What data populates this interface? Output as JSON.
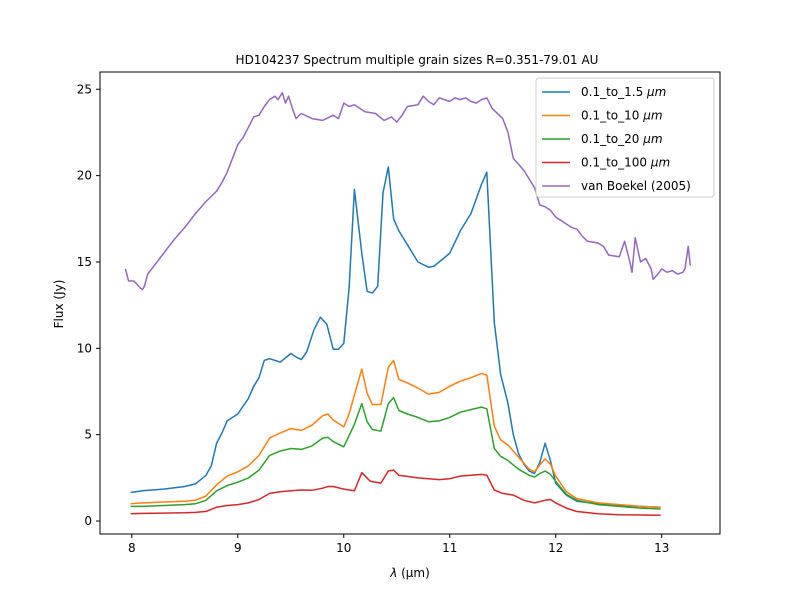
{
  "chart_data": {
    "type": "line",
    "title": "HD104237 Spectrum multiple grain sizes R=0.351-79.01 AU",
    "xlabel_symbol": "λ",
    "xlabel_units": " (μm)",
    "ylabel": "Flux (Jy)",
    "xlim": [
      7.7,
      13.55
    ],
    "ylim": [
      -0.75,
      26.0
    ],
    "xticks": [
      8,
      9,
      10,
      11,
      12,
      13
    ],
    "yticks": [
      0,
      5,
      10,
      15,
      20,
      25
    ],
    "grid": false,
    "legend_position": "top-right",
    "series": [
      {
        "name_prefix": "0.1_to_1.5 ",
        "name_unit": "μm",
        "color": "#1f77b4",
        "x": [
          7.99,
          8.1,
          8.3,
          8.5,
          8.6,
          8.7,
          8.75,
          8.8,
          8.85,
          8.9,
          9.0,
          9.1,
          9.15,
          9.2,
          9.25,
          9.3,
          9.35,
          9.4,
          9.5,
          9.55,
          9.6,
          9.65,
          9.72,
          9.78,
          9.84,
          9.9,
          9.95,
          10.0,
          10.05,
          10.1,
          10.17,
          10.22,
          10.27,
          10.32,
          10.37,
          10.42,
          10.47,
          10.52,
          10.6,
          10.7,
          10.8,
          10.85,
          10.9,
          11.0,
          11.1,
          11.2,
          11.3,
          11.35,
          11.42,
          11.48,
          11.55,
          11.6,
          11.65,
          11.7,
          11.75,
          11.8,
          11.85,
          11.9,
          11.95,
          12.0,
          12.1,
          12.2,
          12.4,
          12.6,
          12.8,
          12.99
        ],
        "y": [
          1.65,
          1.75,
          1.85,
          2.0,
          2.15,
          2.65,
          3.2,
          4.5,
          5.1,
          5.8,
          6.2,
          7.1,
          7.8,
          8.3,
          9.3,
          9.4,
          9.3,
          9.2,
          9.7,
          9.5,
          9.35,
          9.8,
          11.1,
          11.8,
          11.4,
          9.95,
          9.95,
          10.3,
          13.5,
          19.2,
          15.5,
          13.3,
          13.2,
          13.6,
          19.0,
          20.5,
          17.5,
          16.8,
          16.0,
          15.0,
          14.7,
          14.75,
          15.0,
          15.5,
          16.8,
          17.8,
          19.5,
          20.2,
          11.5,
          8.5,
          6.8,
          5.0,
          3.9,
          3.3,
          2.9,
          2.75,
          3.4,
          4.5,
          3.5,
          2.2,
          1.5,
          1.15,
          1.0,
          0.9,
          0.85,
          0.8
        ]
      },
      {
        "name_prefix": "0.1_to_10 ",
        "name_unit": "μm",
        "color": "#ff7f0e",
        "x": [
          7.99,
          8.1,
          8.3,
          8.5,
          8.6,
          8.7,
          8.8,
          8.9,
          9.0,
          9.1,
          9.2,
          9.3,
          9.4,
          9.5,
          9.6,
          9.7,
          9.8,
          9.85,
          9.9,
          10.0,
          10.05,
          10.1,
          10.17,
          10.22,
          10.27,
          10.35,
          10.42,
          10.47,
          10.52,
          10.6,
          10.7,
          10.8,
          10.9,
          11.0,
          11.1,
          11.2,
          11.3,
          11.35,
          11.42,
          11.48,
          11.55,
          11.65,
          11.75,
          11.8,
          11.85,
          11.9,
          11.95,
          12.0,
          12.1,
          12.2,
          12.4,
          12.6,
          12.8,
          12.99
        ],
        "y": [
          1.0,
          1.05,
          1.1,
          1.15,
          1.2,
          1.45,
          2.1,
          2.6,
          2.85,
          3.2,
          3.8,
          4.8,
          5.1,
          5.35,
          5.25,
          5.55,
          6.1,
          6.2,
          5.85,
          5.45,
          6.2,
          7.3,
          8.8,
          7.4,
          6.75,
          6.75,
          8.9,
          9.3,
          8.2,
          8.0,
          7.7,
          7.35,
          7.45,
          7.8,
          8.1,
          8.3,
          8.55,
          8.45,
          5.5,
          4.7,
          4.4,
          3.7,
          3.0,
          2.85,
          3.25,
          3.6,
          3.3,
          2.6,
          1.7,
          1.3,
          1.05,
          0.95,
          0.85,
          0.8
        ]
      },
      {
        "name_prefix": "0.1_to_20 ",
        "name_unit": "μm",
        "color": "#2ca02c",
        "x": [
          7.99,
          8.1,
          8.3,
          8.5,
          8.6,
          8.7,
          8.8,
          8.9,
          9.0,
          9.1,
          9.2,
          9.3,
          9.4,
          9.5,
          9.6,
          9.7,
          9.8,
          9.85,
          9.9,
          10.0,
          10.05,
          10.1,
          10.17,
          10.22,
          10.27,
          10.35,
          10.42,
          10.47,
          10.52,
          10.6,
          10.7,
          10.8,
          10.9,
          11.0,
          11.1,
          11.2,
          11.3,
          11.35,
          11.42,
          11.48,
          11.55,
          11.65,
          11.75,
          11.8,
          11.85,
          11.9,
          11.95,
          12.0,
          12.1,
          12.2,
          12.4,
          12.6,
          12.8,
          12.99
        ],
        "y": [
          0.85,
          0.85,
          0.9,
          0.95,
          1.0,
          1.2,
          1.75,
          2.05,
          2.25,
          2.5,
          2.95,
          3.8,
          4.05,
          4.2,
          4.15,
          4.35,
          4.8,
          4.85,
          4.6,
          4.3,
          4.95,
          5.6,
          6.8,
          5.75,
          5.3,
          5.2,
          6.8,
          7.15,
          6.4,
          6.2,
          6.0,
          5.75,
          5.8,
          6.0,
          6.3,
          6.45,
          6.6,
          6.5,
          4.2,
          3.75,
          3.5,
          3.0,
          2.65,
          2.55,
          2.75,
          2.9,
          2.7,
          2.3,
          1.55,
          1.2,
          0.95,
          0.85,
          0.75,
          0.7
        ]
      },
      {
        "name_prefix": "0.1_to_100 ",
        "name_unit": "μm",
        "color": "#d62728",
        "x": [
          7.99,
          8.1,
          8.3,
          8.5,
          8.6,
          8.7,
          8.8,
          8.9,
          9.0,
          9.1,
          9.2,
          9.3,
          9.4,
          9.5,
          9.6,
          9.7,
          9.8,
          9.85,
          9.9,
          10.0,
          10.1,
          10.17,
          10.25,
          10.35,
          10.42,
          10.47,
          10.52,
          10.7,
          10.9,
          11.0,
          11.1,
          11.3,
          11.35,
          11.42,
          11.5,
          11.6,
          11.7,
          11.8,
          11.9,
          11.95,
          12.0,
          12.1,
          12.2,
          12.4,
          12.6,
          12.8,
          12.99
        ],
        "y": [
          0.42,
          0.44,
          0.46,
          0.48,
          0.5,
          0.56,
          0.8,
          0.9,
          0.95,
          1.05,
          1.25,
          1.6,
          1.7,
          1.75,
          1.8,
          1.78,
          1.9,
          2.0,
          2.0,
          1.85,
          1.75,
          2.8,
          2.3,
          2.2,
          2.9,
          2.95,
          2.65,
          2.5,
          2.4,
          2.45,
          2.6,
          2.7,
          2.65,
          1.8,
          1.6,
          1.5,
          1.2,
          1.05,
          1.2,
          1.25,
          1.05,
          0.75,
          0.55,
          0.42,
          0.37,
          0.35,
          0.33
        ]
      },
      {
        "name_prefix": "van Boekel (2005)",
        "name_unit": "",
        "color": "#9467bd",
        "x": [
          7.94,
          7.97,
          8.02,
          8.05,
          8.08,
          8.1,
          8.12,
          8.15,
          8.2,
          8.3,
          8.4,
          8.5,
          8.6,
          8.7,
          8.8,
          8.85,
          8.9,
          8.95,
          9.0,
          9.05,
          9.1,
          9.15,
          9.2,
          9.25,
          9.3,
          9.35,
          9.38,
          9.42,
          9.45,
          9.48,
          9.52,
          9.55,
          9.6,
          9.7,
          9.8,
          9.9,
          9.95,
          10.0,
          10.05,
          10.1,
          10.2,
          10.3,
          10.38,
          10.45,
          10.5,
          10.55,
          10.6,
          10.7,
          10.75,
          10.8,
          10.85,
          10.9,
          10.95,
          11.0,
          11.05,
          11.1,
          11.15,
          11.2,
          11.25,
          11.3,
          11.35,
          11.4,
          11.5,
          11.55,
          11.6,
          11.7,
          11.8,
          11.85,
          11.9,
          11.95,
          12.0,
          12.05,
          12.1,
          12.15,
          12.2,
          12.25,
          12.3,
          12.4,
          12.45,
          12.5,
          12.6,
          12.65,
          12.7,
          12.72,
          12.75,
          12.8,
          12.85,
          12.9,
          12.92,
          12.95,
          13.0,
          13.05,
          13.1,
          13.15,
          13.2,
          13.22,
          13.25,
          13.27
        ],
        "y": [
          14.6,
          13.9,
          13.9,
          13.7,
          13.5,
          13.4,
          13.6,
          14.3,
          14.7,
          15.5,
          16.3,
          17.0,
          17.8,
          18.5,
          19.1,
          19.6,
          20.2,
          21.0,
          21.8,
          22.2,
          22.8,
          23.4,
          23.5,
          24.0,
          24.4,
          24.6,
          24.4,
          24.8,
          24.2,
          24.6,
          23.8,
          23.3,
          23.6,
          23.3,
          23.2,
          23.5,
          23.3,
          24.2,
          24.0,
          24.1,
          23.7,
          23.6,
          23.2,
          23.4,
          23.1,
          23.5,
          24.0,
          24.1,
          24.6,
          24.3,
          24.1,
          24.5,
          24.4,
          24.3,
          24.5,
          24.4,
          24.5,
          24.3,
          24.2,
          24.4,
          24.5,
          23.9,
          23.3,
          22.5,
          21.0,
          20.3,
          19.3,
          18.3,
          18.2,
          18.0,
          17.6,
          17.4,
          17.2,
          17.0,
          16.9,
          16.5,
          16.2,
          16.1,
          15.9,
          15.4,
          15.3,
          16.2,
          15.0,
          14.4,
          16.4,
          15.0,
          15.2,
          14.6,
          14.0,
          14.2,
          14.6,
          14.4,
          14.5,
          14.3,
          14.4,
          14.6,
          15.9,
          14.8
        ]
      }
    ]
  }
}
